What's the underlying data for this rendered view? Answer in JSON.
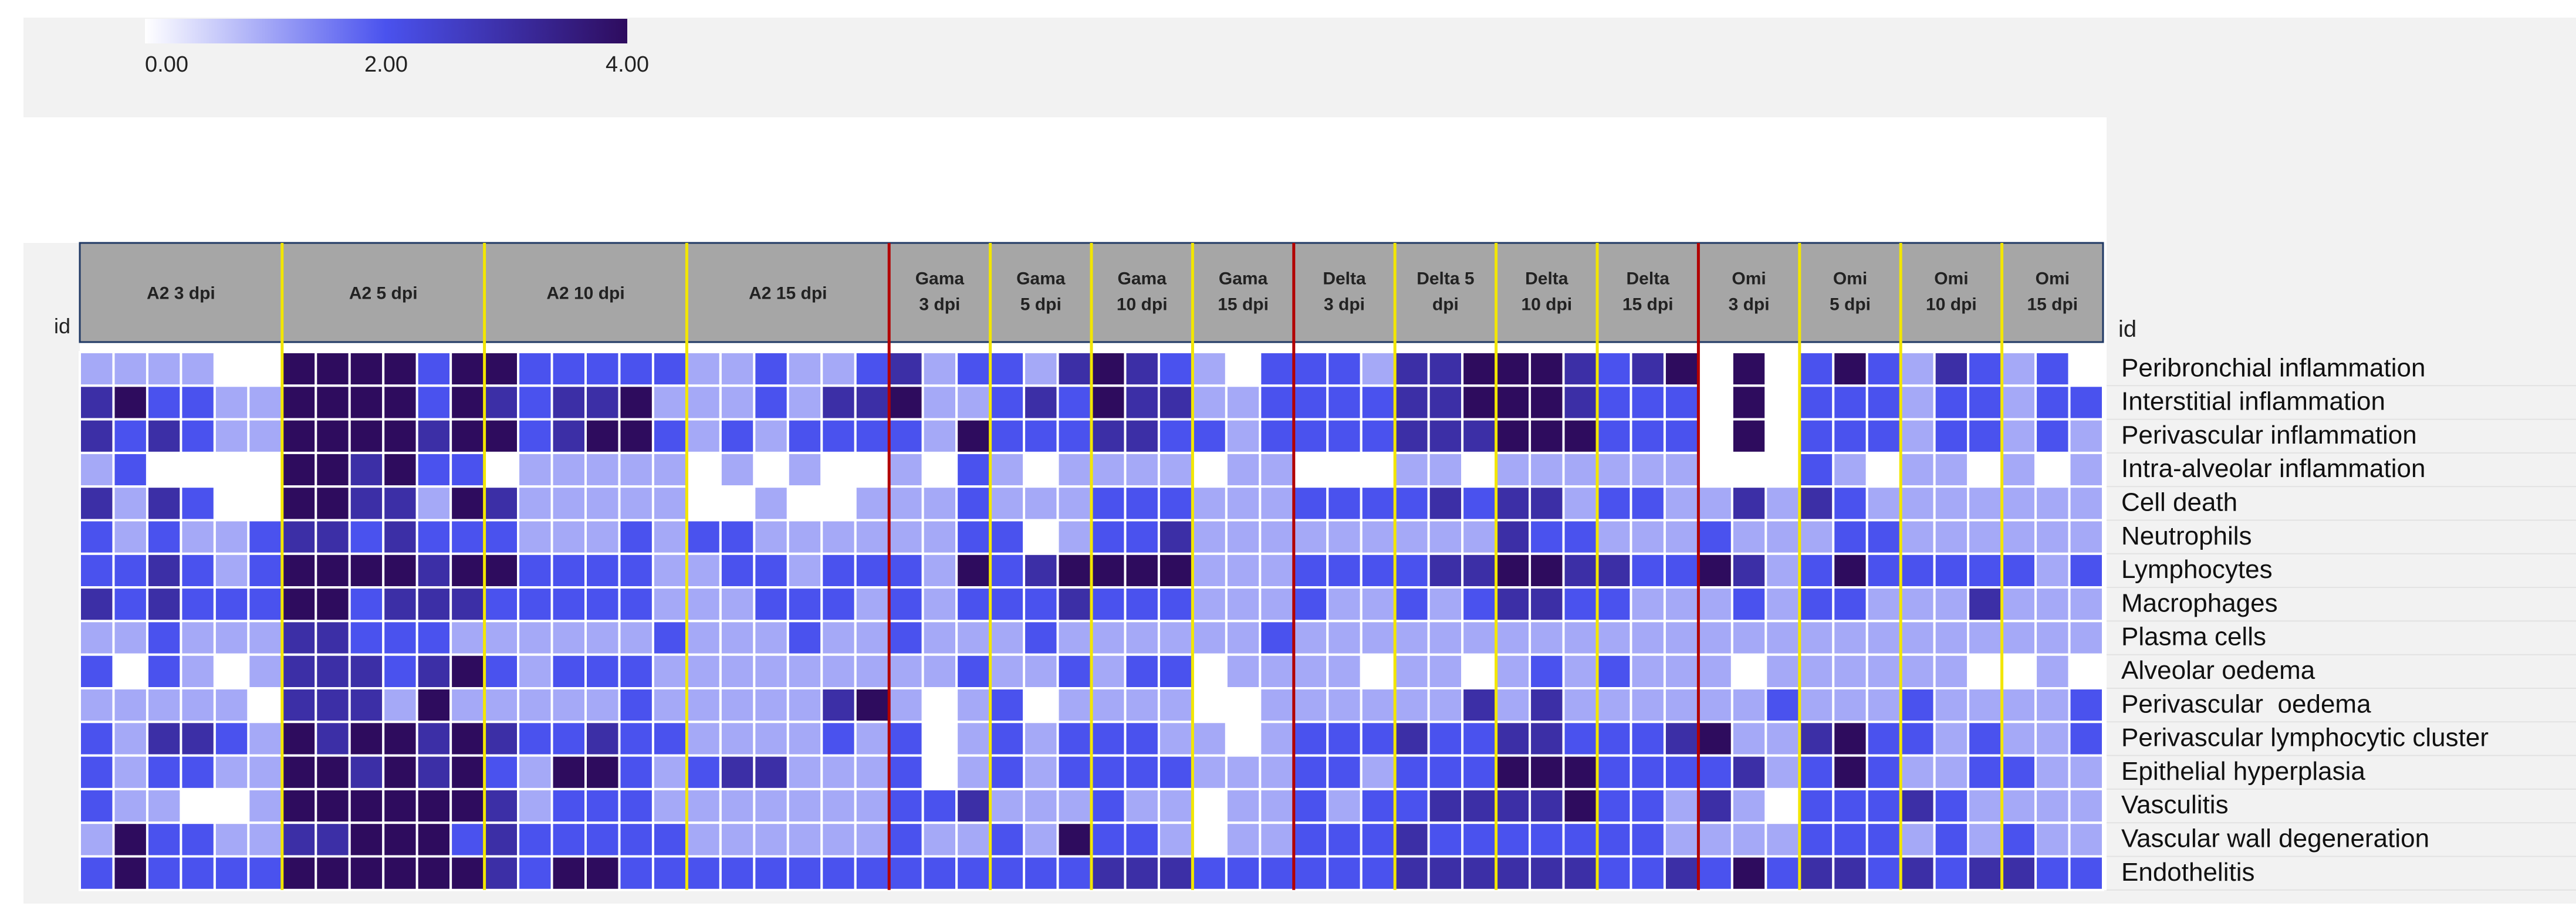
{
  "chart_data": {
    "type": "heatmap",
    "title": "",
    "axis_label": "id",
    "color_scale": {
      "min": 0,
      "max": 4,
      "stops": [
        {
          "value": 0,
          "color": "#ffffff"
        },
        {
          "value": 2,
          "color": "#4a52ee"
        },
        {
          "value": 4,
          "color": "#2e0c5e"
        }
      ],
      "ticks": [
        "0.00",
        "2.00",
        "4.00"
      ]
    },
    "separator_colors": {
      "time_point": "#f2e600",
      "variant": "#b20000"
    },
    "groups": [
      {
        "label": [
          "A2 3 dpi"
        ],
        "n": 6,
        "variant": "A2"
      },
      {
        "label": [
          "A2 5 dpi"
        ],
        "n": 6,
        "variant": "A2"
      },
      {
        "label": [
          "A2 10 dpi"
        ],
        "n": 6,
        "variant": "A2"
      },
      {
        "label": [
          "A2 15 dpi"
        ],
        "n": 6,
        "variant": "A2"
      },
      {
        "label": [
          "Gama",
          "3 dpi"
        ],
        "n": 3,
        "variant": "Gama"
      },
      {
        "label": [
          "Gama",
          "5 dpi"
        ],
        "n": 3,
        "variant": "Gama"
      },
      {
        "label": [
          "Gama",
          "10 dpi"
        ],
        "n": 3,
        "variant": "Gama"
      },
      {
        "label": [
          "Gama",
          "15 dpi"
        ],
        "n": 3,
        "variant": "Gama"
      },
      {
        "label": [
          "Delta",
          "3 dpi"
        ],
        "n": 3,
        "variant": "Delta"
      },
      {
        "label": [
          "Delta 5",
          "dpi"
        ],
        "n": 3,
        "variant": "Delta"
      },
      {
        "label": [
          "Delta",
          "10 dpi"
        ],
        "n": 3,
        "variant": "Delta"
      },
      {
        "label": [
          "Delta",
          "15 dpi"
        ],
        "n": 3,
        "variant": "Delta"
      },
      {
        "label": [
          "Omi",
          "3 dpi"
        ],
        "n": 3,
        "variant": "Omi"
      },
      {
        "label": [
          "Omi",
          "5 dpi"
        ],
        "n": 3,
        "variant": "Omi"
      },
      {
        "label": [
          "Omi",
          "10 dpi"
        ],
        "n": 3,
        "variant": "Omi"
      },
      {
        "label": [
          "Omi",
          "15 dpi"
        ],
        "n": 3,
        "variant": "Omi"
      }
    ],
    "rows": [
      "Peribronchial inflammation",
      "Interstitial inflammation",
      "Perivascular inflammation",
      "Intra-alveolar inflammation",
      "Cell death",
      "Neutrophils",
      "Lymphocytes",
      "Macrophages",
      "Plasma cells",
      "Alveolar oedema",
      "Perivascular  oedema",
      "Perivascular lymphocytic cluster",
      "Epithelial hyperplasia",
      "Vasculitis",
      "Vascular wall degeneration",
      "Endothelitis"
    ],
    "values": [
      [
        1,
        1,
        1,
        1,
        0,
        0,
        4,
        4,
        4,
        4,
        2,
        4,
        4,
        2,
        2,
        2,
        2,
        2,
        1,
        1,
        2,
        1,
        1,
        2,
        3,
        1,
        2,
        2,
        1,
        3,
        4,
        3,
        2,
        1,
        0,
        2,
        2,
        2,
        1,
        3,
        3,
        4,
        4,
        4,
        3,
        2,
        3,
        4,
        0,
        4,
        0,
        2,
        4,
        2,
        1,
        3,
        2,
        1,
        2,
        0
      ],
      [
        3,
        4,
        2,
        2,
        1,
        1,
        4,
        4,
        4,
        4,
        2,
        4,
        3,
        2,
        3,
        3,
        4,
        1,
        1,
        1,
        2,
        1,
        3,
        3,
        4,
        1,
        1,
        2,
        3,
        2,
        4,
        3,
        3,
        1,
        1,
        2,
        2,
        2,
        2,
        3,
        3,
        4,
        4,
        4,
        3,
        2,
        2,
        2,
        0,
        4,
        0,
        2,
        2,
        2,
        1,
        2,
        2,
        1,
        2,
        2
      ],
      [
        3,
        2,
        3,
        2,
        1,
        1,
        4,
        4,
        4,
        4,
        3,
        4,
        4,
        2,
        3,
        4,
        4,
        2,
        1,
        2,
        1,
        2,
        2,
        2,
        2,
        1,
        4,
        2,
        2,
        2,
        3,
        3,
        2,
        2,
        1,
        2,
        2,
        2,
        2,
        3,
        3,
        3,
        4,
        4,
        4,
        2,
        2,
        2,
        0,
        4,
        0,
        2,
        2,
        2,
        1,
        2,
        2,
        1,
        2,
        1
      ],
      [
        1,
        2,
        0,
        0,
        0,
        0,
        4,
        4,
        3,
        4,
        2,
        2,
        0,
        1,
        1,
        1,
        1,
        1,
        0,
        1,
        0,
        1,
        0,
        0,
        1,
        0,
        2,
        1,
        0,
        1,
        1,
        1,
        1,
        0,
        1,
        1,
        0,
        0,
        0,
        1,
        1,
        0,
        1,
        1,
        1,
        1,
        1,
        1,
        0,
        0,
        0,
        2,
        1,
        0,
        1,
        1,
        0,
        1,
        0,
        1
      ],
      [
        3,
        1,
        3,
        2,
        0,
        0,
        4,
        4,
        3,
        3,
        1,
        4,
        3,
        1,
        1,
        1,
        1,
        1,
        0,
        0,
        1,
        0,
        0,
        1,
        1,
        1,
        2,
        1,
        1,
        1,
        2,
        2,
        2,
        1,
        1,
        1,
        2,
        2,
        2,
        2,
        3,
        2,
        3,
        3,
        1,
        2,
        2,
        1,
        1,
        3,
        1,
        3,
        2,
        1,
        1,
        1,
        1,
        1,
        1,
        1
      ],
      [
        2,
        1,
        2,
        1,
        1,
        2,
        3,
        3,
        2,
        3,
        2,
        2,
        2,
        1,
        1,
        1,
        2,
        1,
        2,
        2,
        1,
        1,
        1,
        1,
        1,
        1,
        2,
        2,
        0,
        1,
        2,
        2,
        3,
        1,
        1,
        1,
        1,
        1,
        1,
        1,
        1,
        1,
        3,
        2,
        2,
        1,
        1,
        1,
        2,
        1,
        1,
        1,
        2,
        2,
        1,
        1,
        1,
        1,
        1,
        1
      ],
      [
        2,
        2,
        3,
        2,
        1,
        2,
        4,
        4,
        4,
        4,
        3,
        4,
        4,
        2,
        2,
        2,
        2,
        1,
        1,
        2,
        2,
        1,
        2,
        2,
        2,
        1,
        4,
        2,
        3,
        4,
        4,
        4,
        4,
        1,
        1,
        1,
        2,
        2,
        2,
        2,
        3,
        3,
        4,
        4,
        3,
        3,
        2,
        2,
        4,
        3,
        1,
        2,
        4,
        2,
        2,
        2,
        2,
        2,
        1,
        2
      ],
      [
        3,
        2,
        3,
        2,
        2,
        2,
        4,
        4,
        2,
        3,
        3,
        3,
        2,
        2,
        2,
        2,
        2,
        1,
        1,
        1,
        2,
        2,
        2,
        1,
        2,
        1,
        2,
        2,
        2,
        3,
        2,
        2,
        2,
        1,
        1,
        1,
        2,
        1,
        1,
        2,
        1,
        2,
        3,
        3,
        2,
        2,
        1,
        1,
        1,
        2,
        1,
        2,
        2,
        1,
        1,
        1,
        3,
        1,
        1,
        1
      ],
      [
        1,
        1,
        2,
        1,
        1,
        1,
        3,
        3,
        2,
        2,
        2,
        1,
        1,
        1,
        1,
        1,
        1,
        2,
        1,
        1,
        1,
        2,
        1,
        1,
        2,
        1,
        1,
        1,
        2,
        1,
        1,
        1,
        1,
        1,
        1,
        2,
        1,
        1,
        1,
        1,
        1,
        1,
        1,
        1,
        1,
        1,
        1,
        1,
        1,
        1,
        1,
        1,
        1,
        1,
        1,
        1,
        1,
        1,
        1,
        1
      ],
      [
        2,
        0,
        2,
        1,
        0,
        1,
        3,
        3,
        3,
        2,
        3,
        4,
        2,
        1,
        2,
        2,
        2,
        1,
        1,
        1,
        1,
        1,
        1,
        1,
        1,
        1,
        2,
        1,
        1,
        2,
        1,
        2,
        2,
        0,
        1,
        1,
        1,
        1,
        0,
        1,
        1,
        0,
        1,
        2,
        1,
        2,
        1,
        1,
        1,
        0,
        1,
        1,
        1,
        1,
        1,
        1,
        0,
        0,
        1,
        0
      ],
      [
        1,
        1,
        1,
        1,
        1,
        0,
        3,
        3,
        3,
        1,
        4,
        1,
        1,
        1,
        1,
        1,
        2,
        1,
        1,
        1,
        1,
        1,
        3,
        4,
        1,
        0,
        1,
        2,
        0,
        1,
        1,
        1,
        1,
        0,
        0,
        1,
        1,
        1,
        1,
        1,
        1,
        3,
        1,
        3,
        1,
        1,
        1,
        1,
        1,
        1,
        2,
        1,
        1,
        1,
        2,
        1,
        1,
        1,
        1,
        2
      ],
      [
        2,
        1,
        3,
        3,
        2,
        1,
        4,
        3,
        4,
        4,
        3,
        4,
        3,
        2,
        2,
        3,
        2,
        2,
        1,
        1,
        1,
        1,
        2,
        1,
        2,
        0,
        1,
        2,
        1,
        2,
        2,
        2,
        1,
        1,
        0,
        1,
        2,
        2,
        2,
        3,
        2,
        2,
        3,
        3,
        2,
        2,
        2,
        3,
        4,
        1,
        1,
        3,
        4,
        2,
        2,
        1,
        2,
        1,
        1,
        2
      ],
      [
        2,
        1,
        2,
        2,
        1,
        1,
        4,
        4,
        3,
        4,
        3,
        4,
        2,
        1,
        4,
        4,
        2,
        1,
        2,
        3,
        3,
        1,
        1,
        1,
        2,
        0,
        1,
        2,
        1,
        2,
        2,
        2,
        2,
        1,
        1,
        1,
        2,
        2,
        1,
        2,
        2,
        2,
        4,
        4,
        4,
        2,
        2,
        2,
        2,
        3,
        1,
        2,
        4,
        2,
        1,
        1,
        2,
        2,
        1,
        1
      ],
      [
        2,
        1,
        1,
        0,
        0,
        1,
        4,
        4,
        4,
        4,
        4,
        4,
        3,
        1,
        2,
        2,
        2,
        1,
        1,
        1,
        1,
        1,
        1,
        1,
        2,
        2,
        3,
        1,
        1,
        1,
        2,
        1,
        1,
        0,
        1,
        1,
        2,
        1,
        2,
        2,
        3,
        3,
        3,
        3,
        4,
        2,
        2,
        1,
        3,
        1,
        0,
        2,
        2,
        2,
        3,
        2,
        1,
        1,
        1,
        1
      ],
      [
        1,
        4,
        2,
        2,
        1,
        1,
        3,
        3,
        4,
        4,
        4,
        2,
        3,
        2,
        2,
        2,
        2,
        2,
        1,
        1,
        1,
        1,
        1,
        1,
        2,
        1,
        1,
        2,
        1,
        4,
        2,
        2,
        1,
        0,
        1,
        1,
        2,
        2,
        2,
        3,
        2,
        2,
        2,
        2,
        2,
        2,
        2,
        1,
        1,
        1,
        1,
        2,
        2,
        2,
        1,
        2,
        1,
        2,
        1,
        1
      ],
      [
        2,
        4,
        2,
        2,
        2,
        2,
        4,
        4,
        4,
        4,
        4,
        4,
        3,
        2,
        4,
        4,
        2,
        2,
        2,
        2,
        2,
        2,
        2,
        2,
        2,
        2,
        2,
        2,
        2,
        2,
        3,
        3,
        3,
        2,
        2,
        2,
        2,
        2,
        2,
        3,
        3,
        3,
        3,
        3,
        3,
        2,
        2,
        3,
        2,
        4,
        2,
        3,
        3,
        2,
        3,
        2,
        3,
        3,
        2,
        2
      ]
    ]
  }
}
